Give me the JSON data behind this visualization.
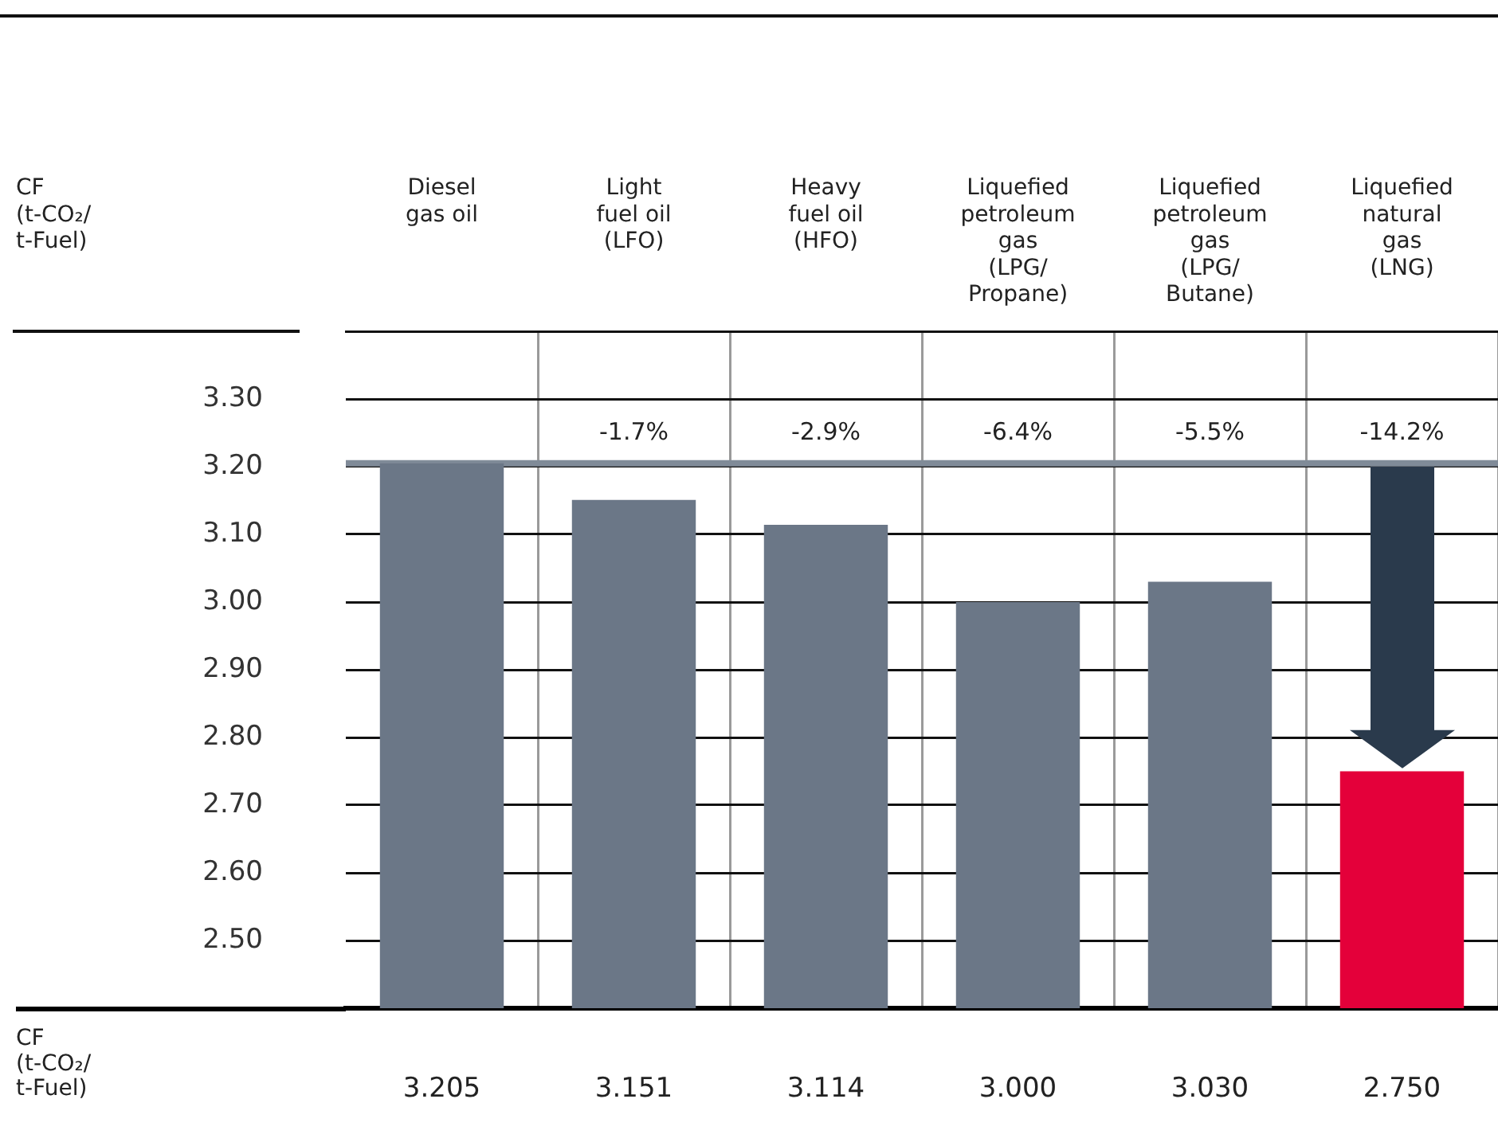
{
  "chart_data": {
    "type": "bar",
    "categories": [
      "Diesel gas oil",
      "Light fuel oil (LFO)",
      "Heavy fuel oil (HFO)",
      "Liquefied petroleum gas (LPG/ Propane)",
      "Liquefied petroleum gas (LPG/ Butane)",
      "Liquefied natural gas (LNG)"
    ],
    "values": [
      3.205,
      3.151,
      3.114,
      3.0,
      3.03,
      2.75
    ],
    "colors": [
      "#6b7787",
      "#6b7787",
      "#6b7787",
      "#6b7787",
      "#6b7787",
      "#e4003a"
    ],
    "value_labels": [
      "3.205",
      "3.151",
      "3.114",
      "3.000",
      "3.030",
      "2.750"
    ],
    "ylim": [
      2.4,
      3.4
    ],
    "yticks": [
      {
        "value": 2.5,
        "label": "2.50"
      },
      {
        "value": 2.6,
        "label": "2.60"
      },
      {
        "value": 2.7,
        "label": "2.70"
      },
      {
        "value": 2.8,
        "label": "2.80"
      },
      {
        "value": 2.9,
        "label": "2.90"
      },
      {
        "value": 3.0,
        "label": "3.00"
      },
      {
        "value": 3.1,
        "label": "3.10"
      },
      {
        "value": 3.2,
        "label": "3.20"
      },
      {
        "value": 3.3,
        "label": "3.30"
      }
    ],
    "grid": true,
    "ref_lines": [
      {
        "axis": "y",
        "value": 3.205,
        "color": "#808b98"
      }
    ],
    "annotations": [
      "CF (t-CO₂/ t-Fuel)",
      {
        "text": "-1.7%",
        "x": "Light fuel oil (LFO)",
        "y": 3.205
      },
      {
        "text": "-2.9%",
        "x": "Heavy fuel oil (HFO)",
        "y": 3.205
      },
      {
        "text": "-6.4%",
        "x": "Liquefied petroleum gas (LPG/ Propane)",
        "y": 3.205
      },
      {
        "text": "-5.5%",
        "x": "Liquefied petroleum gas (LPG/ Butane)",
        "y": 3.205
      },
      {
        "text": "-14.2%",
        "x": "Liquefied natural gas (LNG)",
        "y": 3.205
      },
      "CF (t-CO₂/ t-Fuel)"
    ]
  }
}
